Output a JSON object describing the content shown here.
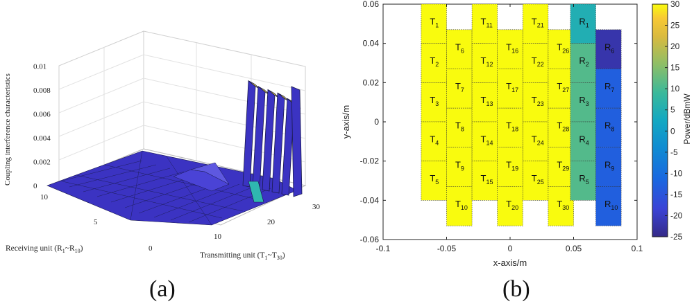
{
  "chart_data": [
    {
      "type": "surface3d",
      "panel": "(a)",
      "zlabel": "Coupling interference characteristics",
      "xlabel_base": "Receiving unit  (R",
      "xlabel_sub1": "1",
      "xlabel_mid": "~R",
      "xlabel_sub2": "10",
      "xlabel_end": ")",
      "ylabel_base": "Transmitting unit  (T",
      "ylabel_sub1": "1",
      "ylabel_mid": "~T",
      "ylabel_sub2": "30",
      "ylabel_end": ")",
      "ztick_labels": [
        "0",
        "0.002",
        "0.004",
        "0.006",
        "0.008",
        "0.01"
      ],
      "rtick_labels": [
        "0",
        "5",
        "10"
      ],
      "ttick_labels": [
        "10",
        "20",
        "30"
      ],
      "colors": {
        "surface": "#3b33c2",
        "peak": "#f7e23a",
        "mid": "#2fb7b0",
        "edge": "#1a1a4a"
      },
      "peak_profile": [
        {
          "transmitter": 20,
          "value": 0.0006
        },
        {
          "transmitter": 24,
          "value": 0.0088
        },
        {
          "transmitter": 25,
          "value": 0.0085
        },
        {
          "transmitter": 26,
          "value": 0.0084
        },
        {
          "transmitter": 27,
          "value": 0.0083
        },
        {
          "transmitter": 28,
          "value": 0.008
        }
      ]
    },
    {
      "type": "heatmap",
      "panel": "(b)",
      "xlabel": "x-axis/m",
      "ylabel": "y-axis/m",
      "xlim": [
        -0.1,
        0.1
      ],
      "ylim": [
        -0.06,
        0.06
      ],
      "xtick_labels": [
        "-0.1",
        "-0.05",
        "0",
        "0.05",
        "0.1"
      ],
      "xtick_values": [
        -0.1,
        -0.05,
        0,
        0.05,
        0.1
      ],
      "ytick_labels": [
        "0.06",
        "0.04",
        "0.02",
        "0",
        "-0.02",
        "-0.04",
        "-0.06"
      ],
      "ytick_values": [
        0.06,
        0.04,
        0.02,
        0,
        -0.02,
        -0.04,
        -0.06
      ],
      "colorbar": {
        "label": "Power/dBmW",
        "range": [
          -25,
          30
        ],
        "tick_labels": [
          "30",
          "25",
          "20",
          "15",
          "10",
          "5",
          "0",
          "-5",
          "-10",
          "-15",
          "-20",
          "-25"
        ],
        "tick_values": [
          30,
          25,
          20,
          15,
          10,
          5,
          0,
          -5,
          -10,
          -15,
          -20,
          -25
        ]
      },
      "cell_width": 0.02,
      "cell_height": 0.02,
      "columns": [
        {
          "x_center": -0.06,
          "y_top": 0.06,
          "labels": [
            "1",
            "2",
            "3",
            "4",
            "5"
          ],
          "prefix": "T",
          "power": 30
        },
        {
          "x_center": -0.04,
          "y_top": 0.047,
          "labels": [
            "6",
            "7",
            "8",
            "9",
            "10"
          ],
          "prefix": "T",
          "power": 30
        },
        {
          "x_center": -0.02,
          "y_top": 0.06,
          "labels": [
            "11",
            "12",
            "13",
            "14",
            "15"
          ],
          "prefix": "T",
          "power": 30
        },
        {
          "x_center": 0.0,
          "y_top": 0.047,
          "labels": [
            "16",
            "17",
            "18",
            "19",
            "20"
          ],
          "prefix": "T",
          "power": 30
        },
        {
          "x_center": 0.02,
          "y_top": 0.06,
          "labels": [
            "21",
            "22",
            "23",
            "24",
            "25"
          ],
          "prefix": "T",
          "power": 30
        },
        {
          "x_center": 0.04,
          "y_top": 0.047,
          "labels": [
            "26",
            "27",
            "28",
            "29",
            "30"
          ],
          "prefix": "T",
          "power": 30
        },
        {
          "x_center": 0.0575,
          "y_top": 0.06,
          "labels": [
            "1",
            "2",
            "3",
            "4",
            "5"
          ],
          "prefix": "R",
          "power_list": [
            5,
            11,
            11,
            11,
            11
          ]
        },
        {
          "x_center": 0.0775,
          "y_top": 0.047,
          "labels": [
            "6",
            "7",
            "8",
            "9",
            "10"
          ],
          "prefix": "R",
          "power_list": [
            -22,
            -13,
            -13,
            -13,
            -13
          ]
        }
      ]
    }
  ]
}
